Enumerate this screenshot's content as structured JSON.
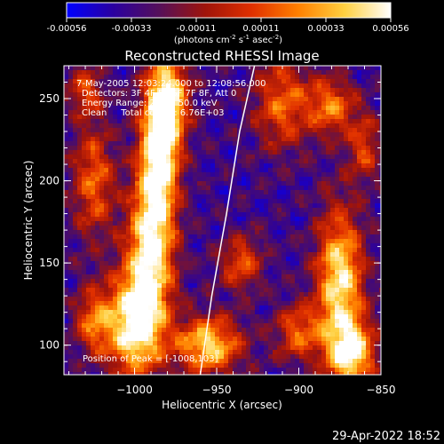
{
  "chart_data": {
    "type": "heatmap",
    "title": "Reconstructed RHESSI Image",
    "colorbar": {
      "ticks": [
        "-0.00056",
        "-0.00033",
        "-0.00011",
        "0.00011",
        "0.00033",
        "0.00056"
      ],
      "range": [
        -0.00056,
        0.00056
      ],
      "unit_main": "(photons cm",
      "unit_exp1": "-2",
      "unit_mid": " s",
      "unit_exp2": "-1",
      "unit_end": " asec",
      "unit_exp3": "-2",
      "unit_close": ")",
      "colormap": [
        "#0000ff",
        "#2a00a0",
        "#55105a",
        "#a0140a",
        "#e03000",
        "#ff8000",
        "#ffd040",
        "#ffffff"
      ]
    },
    "xlabel": "Heliocentric X (arcsec)",
    "ylabel": "Heliocentric Y (arcsec)",
    "xlim": [
      -1043,
      -850
    ],
    "ylim": [
      82,
      270
    ],
    "xticks": [
      {
        "value": -1000,
        "label": "−1000"
      },
      {
        "value": -950,
        "label": "−950"
      },
      {
        "value": -900,
        "label": "−900"
      },
      {
        "value": -850,
        "label": "−850"
      }
    ],
    "yticks": [
      {
        "value": 100,
        "label": "100"
      },
      {
        "value": 150,
        "label": "150"
      },
      {
        "value": 200,
        "label": "200"
      },
      {
        "value": 250,
        "label": "250"
      }
    ],
    "info_lines": [
      "7-May-2005 12:03:24.000 to 12:08:56.000",
      "Detectors: 3F 4F 5F 6F 7F 8F, Att 0",
      "Energy Range: 25.0 - 50.0 keV",
      "Clean     Total counts: 6.76E+03"
    ],
    "peak_label": "Position of Peak = [-1008,103]",
    "peak_position": [
      -1008,
      103
    ],
    "limb_curve": [
      [
        -927,
        270
      ],
      [
        -936,
        230
      ],
      [
        -944,
        180
      ],
      [
        -953,
        130
      ],
      [
        -960,
        82
      ]
    ],
    "bright_regions": [
      {
        "x": -1000,
        "y": 112,
        "sx": 12,
        "sy": 22,
        "a": 1.0
      },
      {
        "x": -990,
        "y": 160,
        "sx": 10,
        "sy": 30,
        "a": 0.95
      },
      {
        "x": -985,
        "y": 215,
        "sx": 8,
        "sy": 25,
        "a": 0.95
      },
      {
        "x": -980,
        "y": 250,
        "sx": 9,
        "sy": 20,
        "a": 0.9
      },
      {
        "x": -1025,
        "y": 200,
        "sx": 9,
        "sy": 24,
        "a": 0.55
      },
      {
        "x": -1030,
        "y": 255,
        "sx": 8,
        "sy": 10,
        "a": 0.45
      },
      {
        "x": -1025,
        "y": 115,
        "sx": 8,
        "sy": 14,
        "a": 0.55
      },
      {
        "x": -955,
        "y": 100,
        "sx": 14,
        "sy": 12,
        "a": 0.85
      },
      {
        "x": -935,
        "y": 150,
        "sx": 9,
        "sy": 12,
        "a": 0.5
      },
      {
        "x": -910,
        "y": 248,
        "sx": 12,
        "sy": 20,
        "a": 0.55
      },
      {
        "x": -875,
        "y": 140,
        "sx": 10,
        "sy": 30,
        "a": 0.9
      },
      {
        "x": -868,
        "y": 95,
        "sx": 10,
        "sy": 14,
        "a": 0.9
      },
      {
        "x": -900,
        "y": 108,
        "sx": 10,
        "sy": 12,
        "a": 0.55
      },
      {
        "x": -860,
        "y": 220,
        "sx": 7,
        "sy": 14,
        "a": 0.45
      },
      {
        "x": -880,
        "y": 245,
        "sx": 10,
        "sy": 12,
        "a": 0.6
      }
    ]
  },
  "footer": {
    "timestamp": "29-Apr-2022 18:52"
  }
}
